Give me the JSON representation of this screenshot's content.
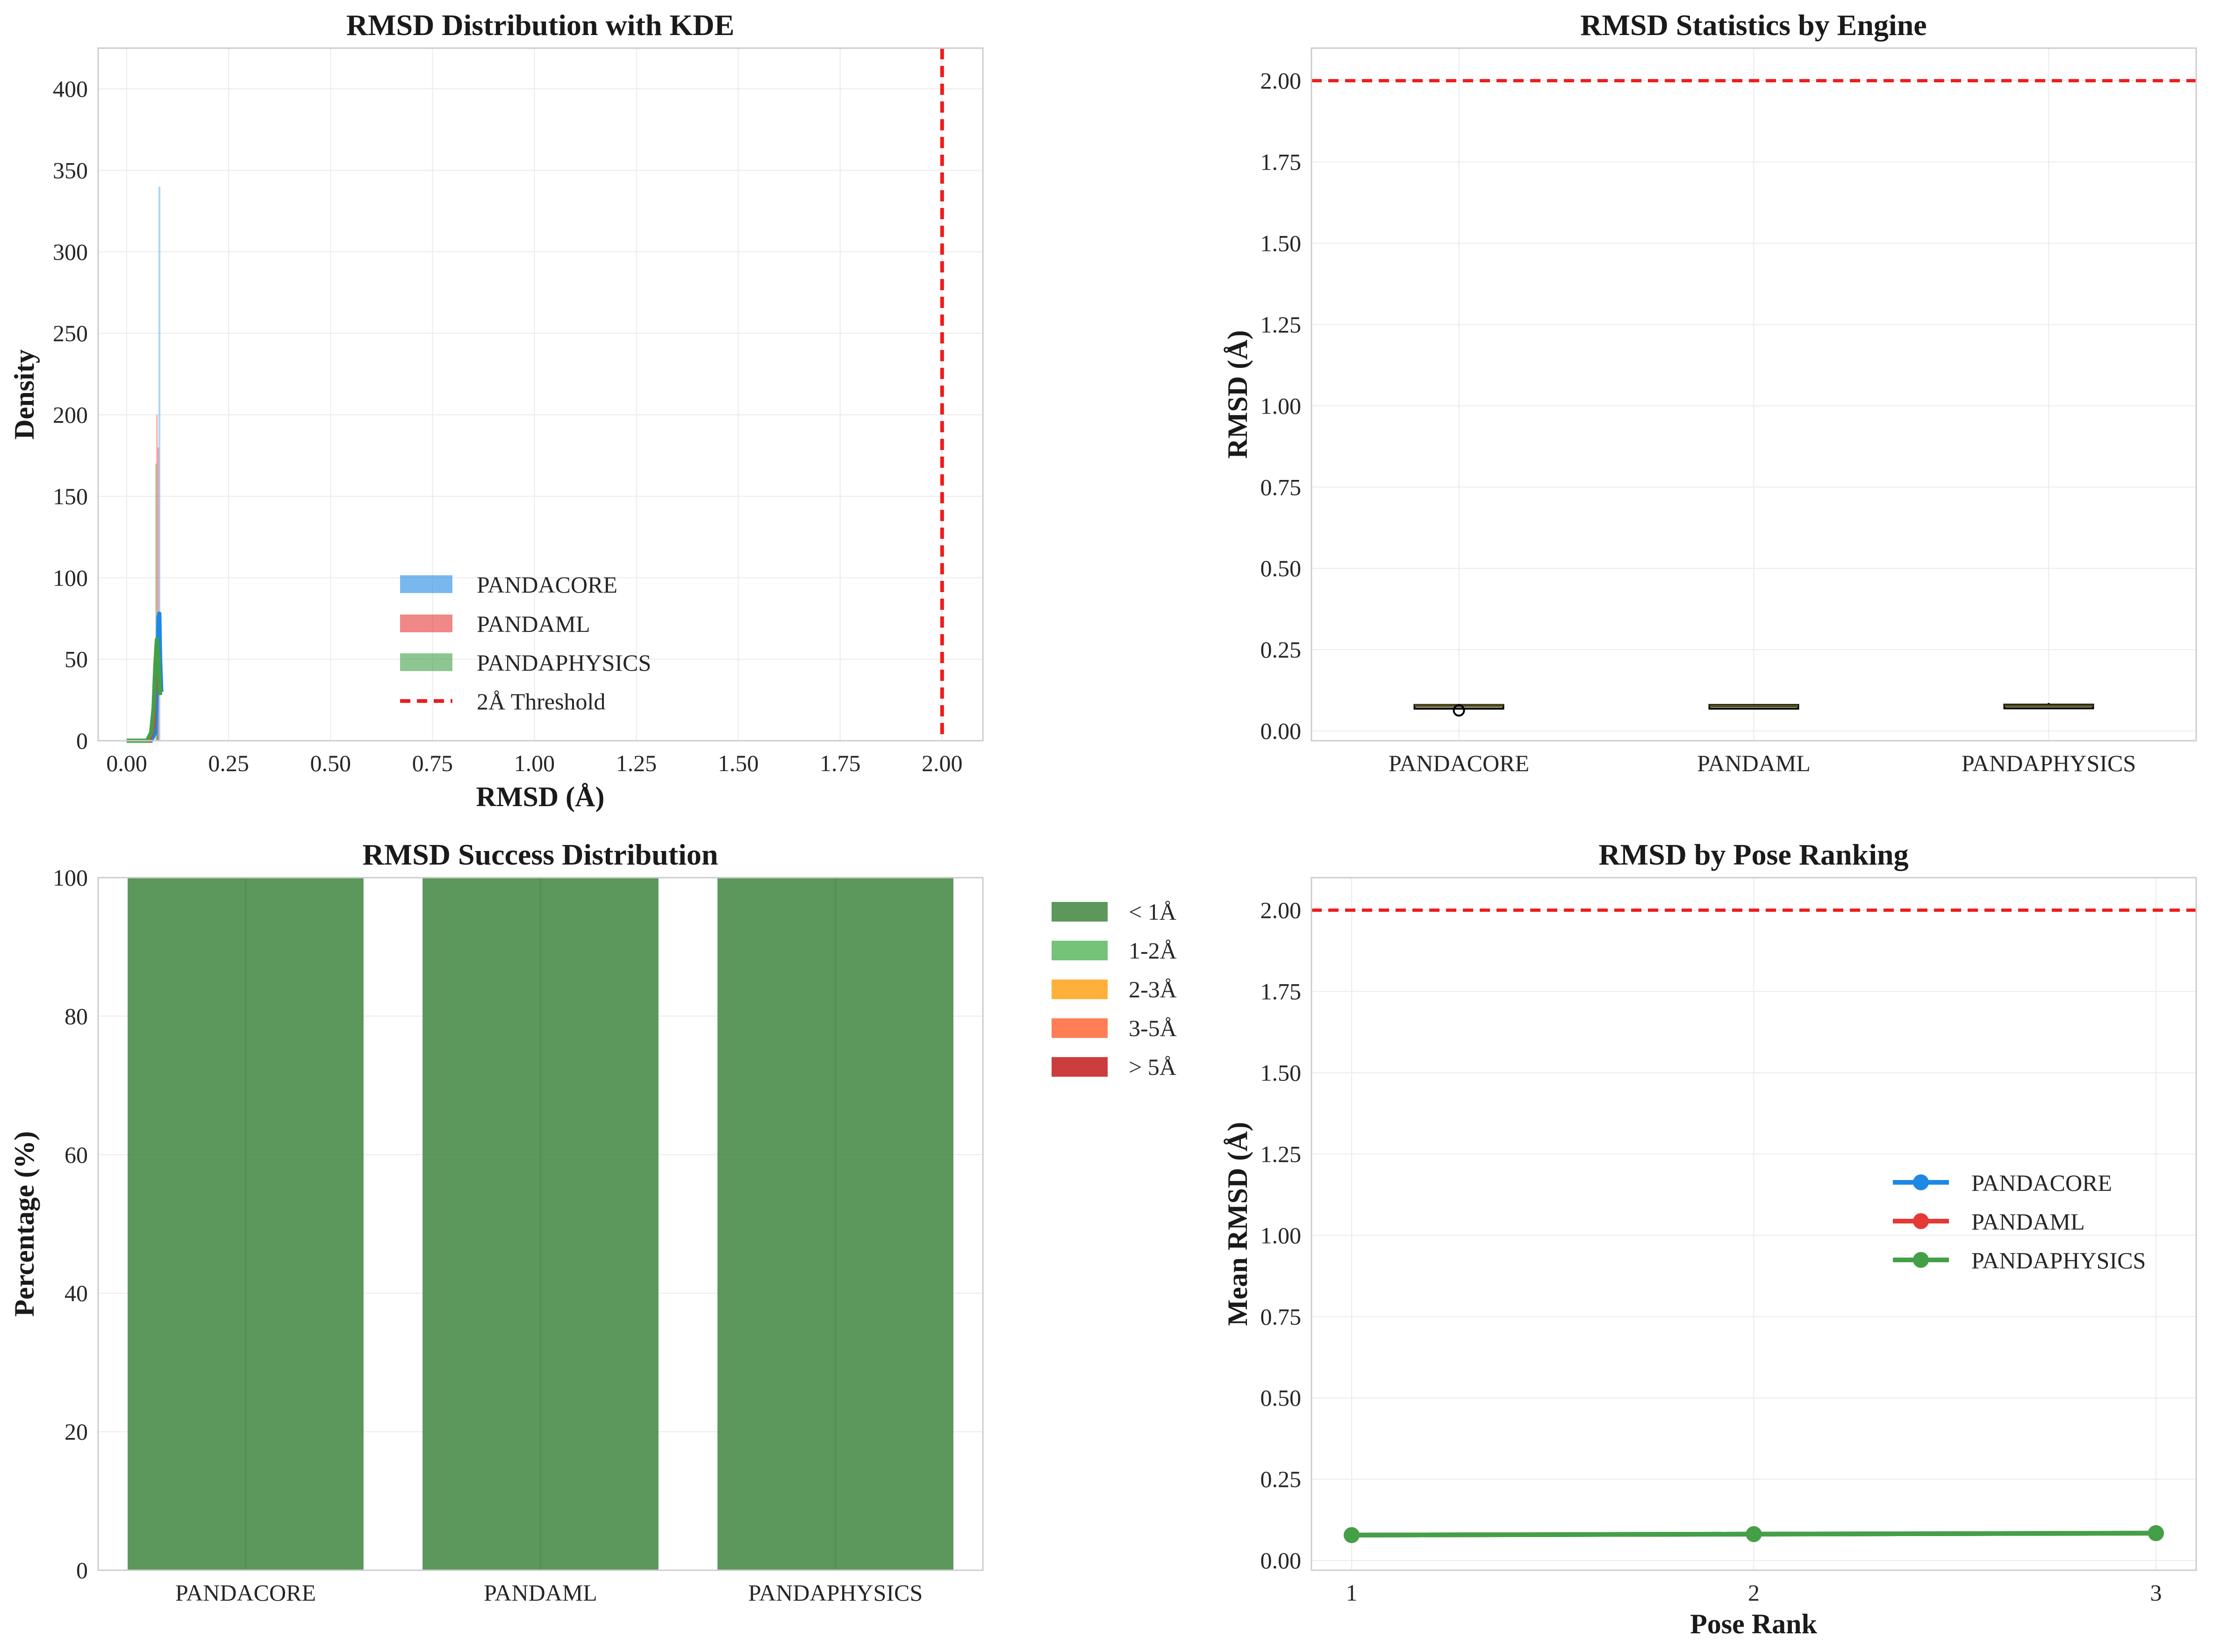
{
  "colors": {
    "pandacore": "#1e88e5",
    "pandaml": "#e53935",
    "pandaphysics": "#43a047",
    "threshold": "#ee1c1c",
    "lt1": "#4a8c4a",
    "b12": "#66bb6a",
    "b23": "#ffa726",
    "b35": "#ff7043",
    "gt5": "#c62828"
  },
  "chart_data": [
    {
      "type": "histogram",
      "title": "RMSD Distribution with KDE",
      "xlabel": "RMSD (Å)",
      "ylabel": "Density",
      "xlim": [
        -0.07,
        2.1
      ],
      "ylim": [
        0,
        425
      ],
      "xticks": [
        "0.00",
        "0.25",
        "0.50",
        "0.75",
        "1.00",
        "1.25",
        "1.50",
        "1.75",
        "2.00"
      ],
      "yticks": [
        "0",
        "50",
        "100",
        "150",
        "200",
        "250",
        "300",
        "350",
        "400"
      ],
      "threshold": 2.0,
      "legend": [
        "PANDACORE",
        "PANDAML",
        "PANDAPHYSICS",
        "2Å Threshold"
      ],
      "hist": [
        {
          "name": "PANDACORE",
          "bars": [
            [
              0.078,
              0.081,
              340
            ],
            [
              0.074,
              0.078,
              75
            ]
          ]
        },
        {
          "name": "PANDAML",
          "bars": [
            [
              0.072,
              0.075,
              200
            ],
            [
              0.075,
              0.078,
              180
            ]
          ]
        },
        {
          "name": "PANDAPHYSICS",
          "bars": [
            [
              0.07,
              0.073,
              170
            ],
            [
              0.073,
              0.076,
              60
            ]
          ]
        }
      ],
      "kde": [
        {
          "name": "PANDACORE",
          "x": [
            0.0,
            0.06,
            0.07,
            0.075,
            0.078,
            0.08,
            0.082,
            0.085
          ],
          "y": [
            0,
            0,
            5,
            40,
            75,
            78,
            50,
            30
          ]
        },
        {
          "name": "PANDAML",
          "x": [
            0.0,
            0.055,
            0.065,
            0.07,
            0.074,
            0.078,
            0.082
          ],
          "y": [
            0,
            0,
            8,
            35,
            55,
            50,
            30
          ]
        },
        {
          "name": "PANDAPHYSICS",
          "x": [
            0.0,
            0.05,
            0.06,
            0.066,
            0.07,
            0.074,
            0.078,
            0.082
          ],
          "y": [
            0,
            0,
            5,
            20,
            45,
            62,
            50,
            28
          ]
        }
      ]
    },
    {
      "type": "box",
      "title": "RMSD Statistics by Engine",
      "ylabel": "RMSD (Å)",
      "ylim": [
        -0.03,
        2.1
      ],
      "yticks": [
        "0.00",
        "0.25",
        "0.50",
        "0.75",
        "1.00",
        "1.25",
        "1.50",
        "1.75",
        "2.00"
      ],
      "categories": [
        "PANDACORE",
        "PANDAML",
        "PANDAPHYSICS"
      ],
      "threshold": 2.0,
      "boxes": [
        {
          "min": 0.072,
          "q1": 0.076,
          "median": 0.078,
          "q3": 0.08,
          "max": 0.083,
          "outliers": [
            0.063
          ]
        },
        {
          "min": 0.072,
          "q1": 0.074,
          "median": 0.077,
          "q3": 0.08,
          "max": 0.083,
          "outliers": []
        },
        {
          "min": 0.07,
          "q1": 0.074,
          "median": 0.078,
          "q3": 0.081,
          "max": 0.086,
          "outliers": []
        }
      ]
    },
    {
      "type": "bar",
      "stacked": true,
      "title": "RMSD Success Distribution",
      "ylabel": "Percentage (%)",
      "ylim": [
        0,
        100
      ],
      "yticks": [
        "0",
        "20",
        "40",
        "60",
        "80",
        "100"
      ],
      "categories": [
        "PANDACORE",
        "PANDAML",
        "PANDAPHYSICS"
      ],
      "series": [
        {
          "name": "< 1Å",
          "values": [
            100,
            100,
            100
          ]
        },
        {
          "name": "1-2Å",
          "values": [
            0,
            0,
            0
          ]
        },
        {
          "name": "2-3Å",
          "values": [
            0,
            0,
            0
          ]
        },
        {
          "name": "3-5Å",
          "values": [
            0,
            0,
            0
          ]
        },
        {
          "name": "> 5Å",
          "values": [
            0,
            0,
            0
          ]
        }
      ],
      "legend_position": "outside-right"
    },
    {
      "type": "line",
      "title": "RMSD by Pose Ranking",
      "xlabel": "Pose Rank",
      "ylabel": "Mean RMSD (Å)",
      "xlim": [
        0.9,
        3.1
      ],
      "ylim": [
        -0.03,
        2.1
      ],
      "xticks": [
        "1",
        "2",
        "3"
      ],
      "yticks": [
        "0.00",
        "0.25",
        "0.50",
        "0.75",
        "1.00",
        "1.25",
        "1.50",
        "1.75",
        "2.00"
      ],
      "threshold": 2.0,
      "x": [
        1,
        2,
        3
      ],
      "series": [
        {
          "name": "PANDACORE",
          "values": [
            0.078,
            0.081,
            0.084
          ]
        },
        {
          "name": "PANDAML",
          "values": [
            0.078,
            0.081,
            0.084
          ]
        },
        {
          "name": "PANDAPHYSICS",
          "values": [
            0.078,
            0.081,
            0.084
          ]
        }
      ]
    }
  ]
}
